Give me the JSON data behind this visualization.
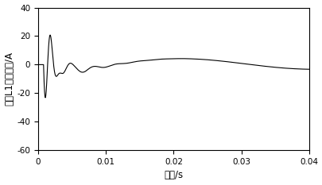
{
  "title": "",
  "xlabel": "时间/s",
  "ylabel": "线路L1零模电流/A",
  "xlim": [
    0,
    0.04
  ],
  "ylim": [
    -60,
    40
  ],
  "yticks": [
    -60,
    -40,
    -20,
    0,
    20,
    40
  ],
  "xticks": [
    0,
    0.01,
    0.02,
    0.03,
    0.04
  ],
  "xtick_labels": [
    "0",
    "0.01",
    "0.02",
    "0.03",
    "0.04"
  ],
  "line_color": "#000000",
  "line_width": 0.8,
  "bg_color": "#ffffff",
  "figsize": [
    4.06,
    2.33
  ],
  "dpi": 100,
  "t_fault": 0.0008,
  "hf_freq": 700,
  "hf_amp": 44.0,
  "hf_tau": 0.0008,
  "mf_freq": 300,
  "mf_amp": 14.0,
  "mf_tau": 0.003,
  "slow_freq": 25,
  "slow_amp": 5.5,
  "slow_tau": 0.08,
  "slow_phase": -1.8
}
